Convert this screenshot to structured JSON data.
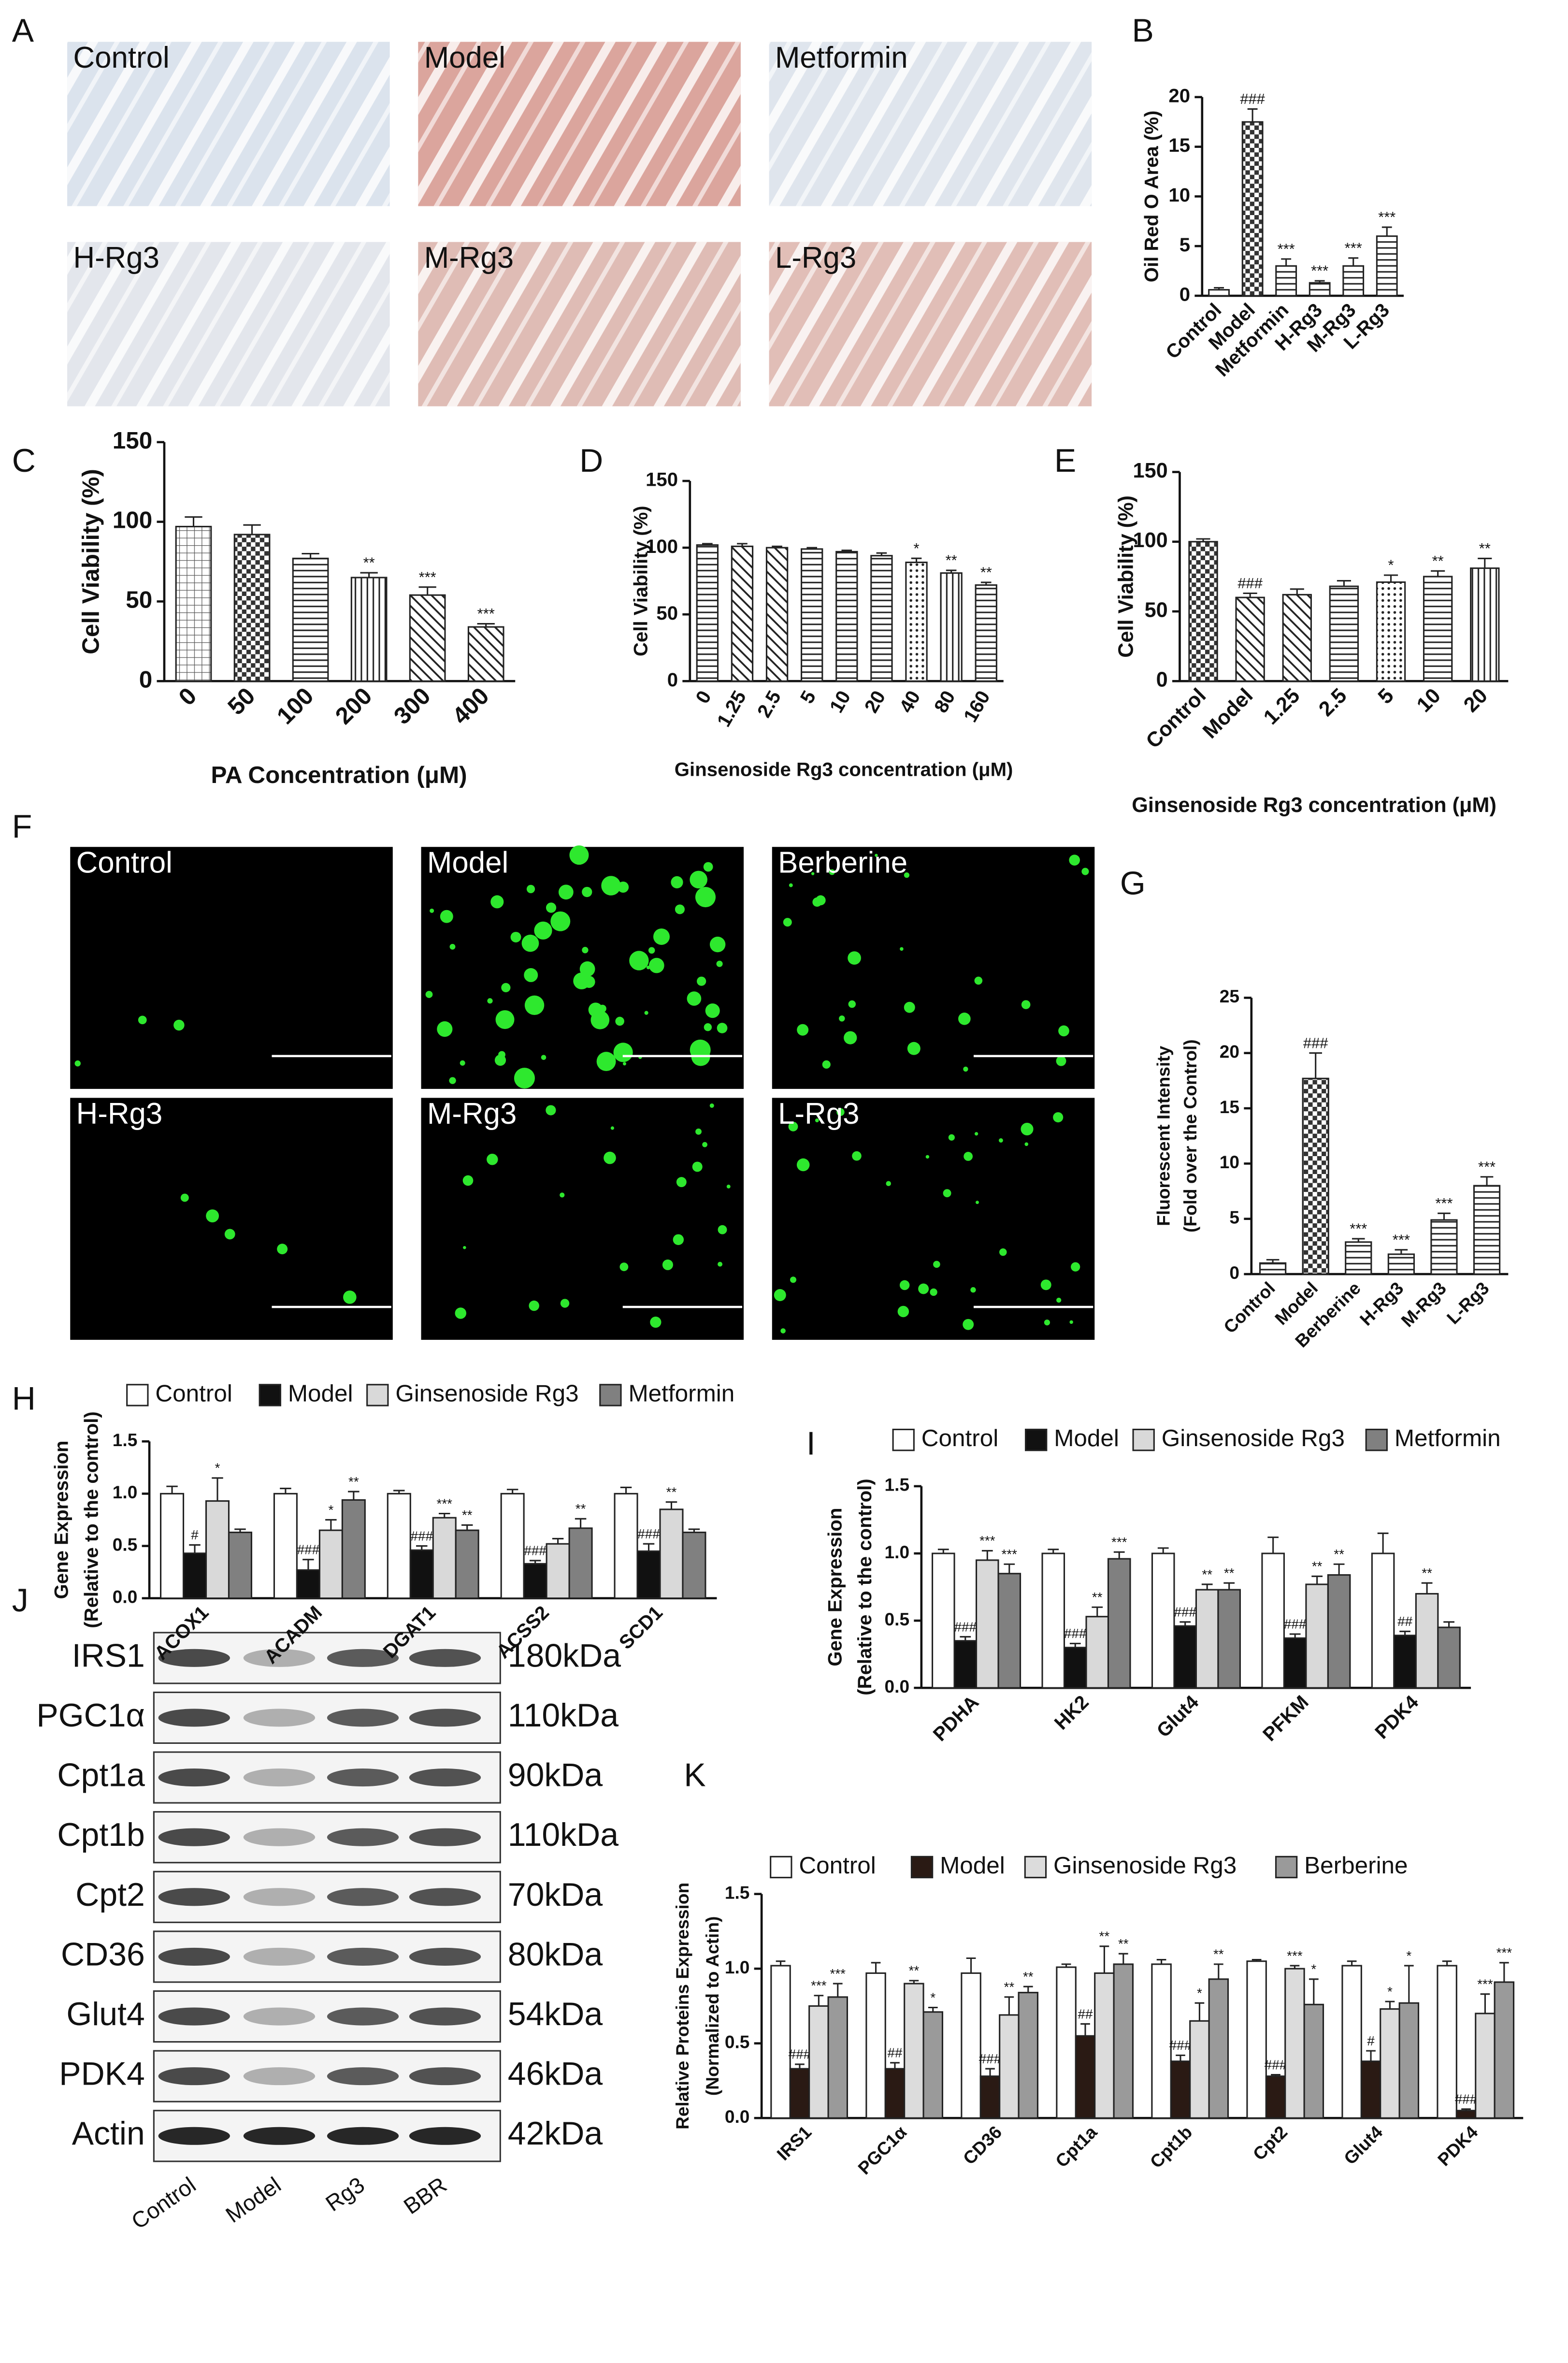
{
  "panel_labels": [
    "A",
    "B",
    "C",
    "D",
    "E",
    "F",
    "G",
    "H",
    "I",
    "J",
    "K"
  ],
  "micrographs_A": {
    "labels": [
      "Control",
      "Model",
      "Metformin",
      "H-Rg3",
      "M-Rg3",
      "L-Rg3"
    ]
  },
  "micrographs_F": {
    "labels": [
      "Control",
      "Model",
      "Berberine",
      "H-Rg3",
      "M-Rg3",
      "L-Rg3"
    ]
  },
  "western_blot": {
    "proteins": [
      "IRS1",
      "PGC1α",
      "Cpt1a",
      "Cpt1b",
      "Cpt2",
      "CD36",
      "Glut4",
      "PDK4",
      "Actin"
    ],
    "sizes": [
      "180kDa",
      "110kDa",
      "90kDa",
      "110kDa",
      "70kDa",
      "80kDa",
      "54kDa",
      "46kDa",
      "42kDa"
    ],
    "lanes": [
      "Control",
      "Model",
      "Rg3",
      "BBR"
    ]
  },
  "chart_data": [
    {
      "type": "bar",
      "ylabel": [
        "Oil Red O Area (%)"
      ],
      "categories": [
        "Control",
        "Model",
        "Metformin",
        "H-Rg3",
        "M-Rg3",
        "L-Rg3"
      ],
      "values": [
        0.6,
        17.5,
        3.0,
        1.3,
        3.0,
        6.0
      ],
      "errors": [
        0.2,
        1.3,
        0.7,
        0.2,
        0.8,
        0.9
      ],
      "annotations": [
        null,
        "###",
        "***",
        "***",
        "***",
        "***"
      ],
      "color": "#ffffff",
      "bar_patterns": [
        "none",
        "cross",
        "horizontal",
        "horizontal",
        "horizontal",
        "horizontal"
      ],
      "ylim": [
        0,
        20
      ],
      "yticks": [
        0,
        5,
        10,
        15,
        20
      ],
      "grid": false
    },
    {
      "type": "bar",
      "ylabel": [
        "Cell Viability (%)"
      ],
      "xlabel": "PA Concentration (μM)",
      "categories": [
        "0",
        "50",
        "100",
        "200",
        "300",
        "400"
      ],
      "values": [
        97,
        92,
        77,
        65,
        54,
        34
      ],
      "errors": [
        6,
        6,
        3,
        3,
        5,
        2
      ],
      "annotations": [
        null,
        null,
        null,
        "**",
        "***",
        "***"
      ],
      "color": "#ffffff",
      "bar_patterns": [
        "grid",
        "cross",
        "horizontal",
        "vertical",
        "diagonal",
        "diagonal"
      ],
      "ylim": [
        0,
        150
      ],
      "yticks": [
        0,
        50,
        100,
        150
      ],
      "grid": false
    },
    {
      "type": "bar",
      "ylabel": [
        "Cell Viability (%)"
      ],
      "xlabel": "Ginsenoside Rg3 concentration (μM)",
      "categories": [
        "0",
        "1.25",
        "2.5",
        "5",
        "10",
        "20",
        "40",
        "80",
        "160"
      ],
      "values": [
        102,
        101,
        100,
        99,
        97,
        94,
        89,
        81,
        72
      ],
      "errors": [
        1,
        2,
        1,
        1,
        1,
        2,
        3,
        2,
        2
      ],
      "annotations": [
        null,
        null,
        null,
        null,
        null,
        null,
        "*",
        "**",
        "**"
      ],
      "color": "#ffffff",
      "bar_patterns": [
        "horizontal",
        "diagonal",
        "diagonal",
        "horizontal",
        "horizontal",
        "horizontal",
        "dots",
        "vertical",
        "horizontal"
      ],
      "ylim": [
        0,
        150
      ],
      "yticks": [
        0,
        50,
        100,
        150
      ],
      "grid": false
    },
    {
      "type": "bar",
      "ylabel": [
        "Cell Viability (%)"
      ],
      "xlabel": "Ginsenoside Rg3 concentration (μM)",
      "categories": [
        "Control",
        "Model",
        "1.25",
        "2.5",
        "5",
        "10",
        "20"
      ],
      "values": [
        100,
        60,
        62,
        68,
        71,
        75,
        81
      ],
      "errors": [
        2,
        3,
        4,
        4,
        5,
        4,
        7
      ],
      "annotations": [
        null,
        "###",
        null,
        null,
        "*",
        "**",
        "**"
      ],
      "color": "#ffffff",
      "bar_patterns": [
        "cross",
        "diagonal",
        "diagonal",
        "horizontal",
        "dots",
        "horizontal",
        "vertical"
      ],
      "ylim": [
        0,
        150
      ],
      "yticks": [
        0,
        50,
        100,
        150
      ],
      "grid": false
    },
    {
      "type": "bar",
      "ylabel": [
        "Fluorescent Intensity",
        "(Fold over the Control)"
      ],
      "categories": [
        "Control",
        "Model",
        "Berberine",
        "H-Rg3",
        "M-Rg3",
        "L-Rg3"
      ],
      "values": [
        1.0,
        17.7,
        2.9,
        1.8,
        4.9,
        8.0
      ],
      "errors": [
        0.3,
        2.3,
        0.3,
        0.4,
        0.6,
        0.8
      ],
      "annotations": [
        null,
        "###",
        "***",
        "***",
        "***",
        "***"
      ],
      "color": "#ffffff",
      "bar_patterns": [
        "horizontal",
        "cross",
        "horizontal",
        "horizontal",
        "horizontal",
        "horizontal"
      ],
      "ylim": [
        0,
        25
      ],
      "yticks": [
        0,
        5,
        10,
        15,
        20,
        25
      ],
      "grid": false
    },
    {
      "type": "grouped_bar",
      "ylabel": [
        "Gene Expression",
        "(Relative to the control)"
      ],
      "categories": [
        "ACOX1",
        "ACADM",
        "DGAT1",
        "ACSS2",
        "SCD1"
      ],
      "series": [
        {
          "name": "Control",
          "color": "#ffffff",
          "values": [
            1.0,
            1.0,
            1.0,
            1.0,
            1.0
          ],
          "errors": [
            0.07,
            0.05,
            0.03,
            0.04,
            0.06
          ],
          "annotations": [
            null,
            null,
            null,
            null,
            null
          ]
        },
        {
          "name": "Model",
          "color": "#111111",
          "values": [
            0.43,
            0.27,
            0.46,
            0.33,
            0.45
          ],
          "errors": [
            0.08,
            0.1,
            0.04,
            0.03,
            0.07
          ],
          "annotations": [
            "#",
            "###",
            "###",
            "###",
            "###"
          ]
        },
        {
          "name": "Ginsenoside Rg3",
          "color": "#d9d9d9",
          "values": [
            0.93,
            0.65,
            0.77,
            0.52,
            0.85
          ],
          "errors": [
            0.22,
            0.1,
            0.04,
            0.05,
            0.07
          ],
          "annotations": [
            "*",
            "*",
            "***",
            null,
            "**"
          ]
        },
        {
          "name": "Metformin",
          "color": "#808080",
          "values": [
            0.63,
            0.94,
            0.65,
            0.67,
            0.63
          ],
          "errors": [
            0.03,
            0.08,
            0.05,
            0.09,
            0.03
          ],
          "annotations": [
            null,
            "**",
            "**",
            "**",
            null
          ]
        }
      ],
      "ylim": [
        0,
        1.5
      ],
      "yticks": [
        {
          "value": 0,
          "label": "0.0"
        },
        0.5,
        {
          "value": 1,
          "label": "1.0"
        },
        1.5
      ],
      "grid": false,
      "legend": "top"
    },
    {
      "type": "grouped_bar",
      "ylabel": [
        "Gene Expression",
        "(Relative to the control)"
      ],
      "categories": [
        "PDHA",
        "HK2",
        "Glut4",
        "PFKM",
        "PDK4"
      ],
      "series": [
        {
          "name": "Control",
          "color": "#ffffff",
          "values": [
            1.0,
            1.0,
            1.0,
            1.0,
            1.0
          ],
          "errors": [
            0.03,
            0.03,
            0.04,
            0.12,
            0.15
          ],
          "annotations": [
            null,
            null,
            null,
            null,
            null
          ]
        },
        {
          "name": "Model",
          "color": "#111111",
          "values": [
            0.35,
            0.3,
            0.46,
            0.37,
            0.39
          ],
          "errors": [
            0.03,
            0.03,
            0.03,
            0.03,
            0.03
          ],
          "annotations": [
            "###",
            "###",
            "###",
            "###",
            "##"
          ]
        },
        {
          "name": "Ginsenoside Rg3",
          "color": "#d9d9d9",
          "values": [
            0.95,
            0.53,
            0.73,
            0.77,
            0.7
          ],
          "errors": [
            0.07,
            0.07,
            0.04,
            0.06,
            0.08
          ],
          "annotations": [
            "***",
            "**",
            "**",
            "**",
            "**"
          ]
        },
        {
          "name": "Metformin",
          "color": "#808080",
          "values": [
            0.85,
            0.96,
            0.73,
            0.84,
            0.45
          ],
          "errors": [
            0.07,
            0.05,
            0.05,
            0.08,
            0.04
          ],
          "annotations": [
            "***",
            "***",
            "**",
            "**",
            null
          ]
        }
      ],
      "ylim": [
        0,
        1.5
      ],
      "yticks": [
        {
          "value": 0,
          "label": "0.0"
        },
        0.5,
        {
          "value": 1,
          "label": "1.0"
        },
        1.5
      ],
      "grid": false,
      "legend": "top"
    },
    {
      "type": "grouped_bar",
      "ylabel": [
        "Relative Proteins Expression",
        "(Normalized to Actin)"
      ],
      "categories": [
        "IRS1",
        "PGC1α",
        "CD36",
        "Cpt1a",
        "Cpt1b",
        "Cpt2",
        "Glut4",
        "PDK4"
      ],
      "series": [
        {
          "name": "Control",
          "color": "#ffffff",
          "values": [
            1.02,
            0.97,
            0.97,
            1.01,
            1.03,
            1.05,
            1.02,
            1.02
          ],
          "errors": [
            0.03,
            0.07,
            0.1,
            0.02,
            0.03,
            0.01,
            0.03,
            0.03
          ],
          "annotations": [
            null,
            null,
            null,
            null,
            null,
            null,
            null,
            null
          ]
        },
        {
          "name": "Model",
          "color": "#2a1a14",
          "values": [
            0.33,
            0.33,
            0.28,
            0.55,
            0.38,
            0.28,
            0.38,
            0.05
          ],
          "errors": [
            0.03,
            0.04,
            0.05,
            0.08,
            0.04,
            0.01,
            0.07,
            0.01
          ],
          "annotations": [
            "###",
            "##",
            "###",
            "##",
            "###",
            "###",
            "#",
            "###"
          ]
        },
        {
          "name": "Ginsenoside Rg3",
          "color": "#dcdcdc",
          "values": [
            0.75,
            0.9,
            0.69,
            0.97,
            0.65,
            1.0,
            0.73,
            0.7
          ],
          "errors": [
            0.07,
            0.02,
            0.12,
            0.18,
            0.12,
            0.02,
            0.05,
            0.13
          ],
          "annotations": [
            "***",
            "**",
            "**",
            "**",
            "*",
            "***",
            "*",
            "***"
          ]
        },
        {
          "name": "Berberine",
          "color": "#9a9a9a",
          "values": [
            0.81,
            0.71,
            0.84,
            1.03,
            0.93,
            0.76,
            0.77,
            0.91
          ],
          "errors": [
            0.09,
            0.03,
            0.04,
            0.07,
            0.1,
            0.17,
            0.25,
            0.13
          ],
          "annotations": [
            "***",
            "*",
            "**",
            "**",
            "**",
            "*",
            "*",
            "***"
          ]
        }
      ],
      "ylim": [
        0,
        1.5
      ],
      "yticks": [
        {
          "value": 0,
          "label": "0.0"
        },
        0.5,
        {
          "value": 1,
          "label": "1.0"
        },
        1.5
      ],
      "grid": false,
      "legend": "top"
    }
  ]
}
